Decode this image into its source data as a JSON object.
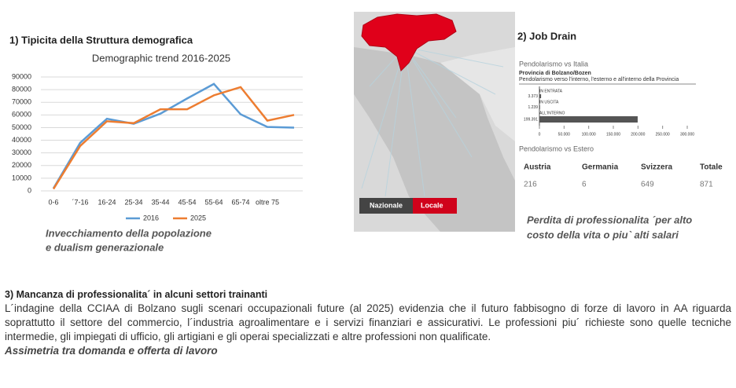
{
  "section1": {
    "heading": "1) Tipicita della Struttura demografica",
    "caption": [
      "Invecchiamento della popolazione",
      "e dualism generazionale"
    ]
  },
  "section2": {
    "heading": "2) Job Drain",
    "map_buttons": [
      "Nazionale",
      "Locale"
    ],
    "italia_label": "Pendolarismo vs Italia",
    "estero_label": "Pendolarismo vs Estero",
    "table": {
      "header": [
        "Austria",
        "Germania",
        "Svizzera",
        "Totale"
      ],
      "rows": [
        [
          216,
          6,
          649,
          871
        ]
      ]
    },
    "caption": [
      "Perdita di professionalita ´per alto",
      "costo della vita o piu` alti salari"
    ]
  },
  "section3": {
    "heading": "3) Mancanza di professionalita´ in alcuni settori trainanti",
    "paragraph": "L´indagine della CCIAA di Bolzano sugli scenari occupazionali future (al 2025) evidenzia che il futuro fabbisogno di forze di lavoro in AA riguarda soprattutto il settore del commercio, l´industria agroalimentare e i servizi finanziari e assicurativi. Le professioni piu´ richieste sono quelle tecniche intermedie, gli impiegati di ufficio, gli artigiani e gli operai specializzati e altre professioni non qualificate.",
    "emphasis": "Assimetria tra domanda e offerta di lavoro"
  },
  "chart_data": [
    {
      "type": "line",
      "title": "Demographic trend 2016-2025",
      "categories": [
        "0-6",
        "´7-16",
        "16-24",
        "25-34",
        "35-44",
        "45-54",
        "55-64",
        "65-74",
        "oltre 75",
        null
      ],
      "series": [
        {
          "name": "2016",
          "color": "#5b9bd5",
          "values": [
            2000,
            38000,
            57000,
            53000,
            61000,
            73000,
            84500,
            60500,
            50500,
            50000
          ]
        },
        {
          "name": "2025",
          "color": "#ed7d31",
          "values": [
            1500,
            35500,
            55000,
            53500,
            64500,
            64500,
            75500,
            82000,
            55500,
            60000
          ]
        }
      ],
      "ylim": [
        0,
        90000
      ],
      "yticks": [
        0,
        10000,
        20000,
        30000,
        40000,
        50000,
        60000,
        70000,
        80000,
        90000
      ],
      "grid": true,
      "legend": "bottom"
    },
    {
      "type": "bar",
      "orientation": "horizontal",
      "title": "Provincia di Bolzano/Bozen",
      "subtitle": "Pendolarismo verso l'interno, l'esterno e all'interno della Provincia",
      "categories": [
        "IN ENTRATA",
        "IN USCITA",
        "ALL'INTERNO"
      ],
      "values": [
        3373,
        1239,
        199391
      ],
      "value_labels": [
        "3.373",
        "1.239",
        "199.391"
      ],
      "color": "#555555",
      "xlim": [
        0,
        300000
      ],
      "xticks": [
        0,
        {
          "value": 50000,
          "label": "50.000"
        },
        {
          "value": 100000,
          "label": "100.000"
        },
        {
          "value": 150000,
          "label": "150.000"
        },
        {
          "value": 200000,
          "label": "200.000"
        },
        {
          "value": 250000,
          "label": "250.000"
        },
        {
          "value": 300000,
          "label": "300.000"
        }
      ]
    }
  ]
}
